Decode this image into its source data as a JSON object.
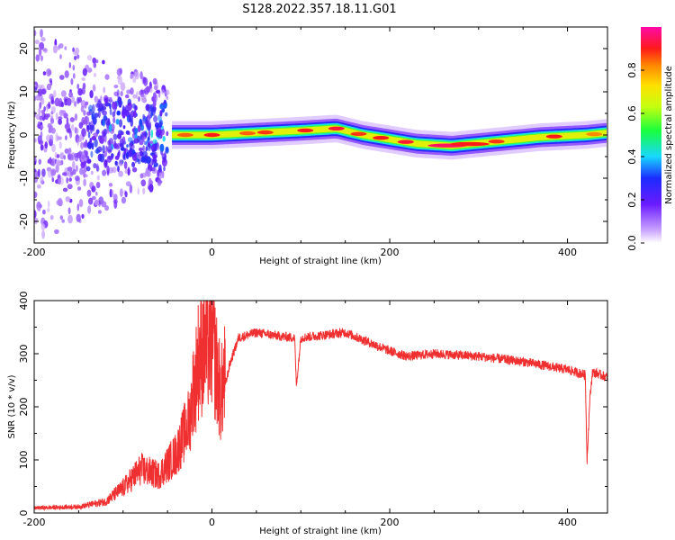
{
  "title": "S128.2022.357.18.11.G01",
  "chart_data": [
    {
      "type": "heatmap",
      "xlabel": "Height of straight line (km)",
      "ylabel": "Frequency (Hz)",
      "xlim": [
        -200,
        445
      ],
      "ylim": [
        -25,
        25
      ],
      "x_ticks": [
        "-200",
        "0",
        "200",
        "400"
      ],
      "y_ticks": [
        "-20",
        "-10",
        "0",
        "10",
        "20"
      ],
      "colorbar": {
        "label": "Normalized spectral amplitude",
        "range": [
          0,
          1
        ],
        "ticks": [
          "0.0",
          "0.2",
          "0.4",
          "0.6",
          "0.8"
        ],
        "colormap": "rainbow (white-violet-blue-cyan-green-yellow-red-magenta)"
      },
      "ridge_line": {
        "height_km": [
          -45,
          -20,
          0,
          50,
          100,
          140,
          170,
          200,
          230,
          270,
          320,
          370,
          420,
          445
        ],
        "frequency_hz": [
          0,
          0,
          0,
          0.5,
          1,
          1.5,
          0,
          -1,
          -2,
          -2.5,
          -1.5,
          -0.5,
          0,
          0.5
        ]
      },
      "noise_region_km": [
        -200,
        -50
      ]
    },
    {
      "type": "line",
      "xlabel": "Height of straight line (km)",
      "ylabel": "SNR (10 * v/v)",
      "xlim": [
        -200,
        445
      ],
      "ylim": [
        0,
        400
      ],
      "x_ticks": [
        "-200",
        "0",
        "200",
        "400"
      ],
      "y_ticks": [
        "0",
        "100",
        "200",
        "300",
        "400"
      ],
      "color": "#f03030",
      "series": [
        {
          "x": [
            -200,
            -150,
            -120,
            -100,
            -80,
            -60,
            -40,
            -25,
            -15,
            0,
            10,
            20,
            30,
            50,
            80,
            93,
            95,
            100,
            150,
            200,
            220,
            250,
            300,
            350,
            400,
            420,
            422,
            425,
            428,
            435,
            445
          ],
          "y": [
            8,
            10,
            18,
            40,
            70,
            60,
            95,
            150,
            270,
            300,
            200,
            280,
            330,
            340,
            332,
            330,
            240,
            330,
            340,
            305,
            295,
            300,
            295,
            285,
            270,
            260,
            100,
            210,
            265,
            262,
            255
          ]
        }
      ]
    }
  ]
}
